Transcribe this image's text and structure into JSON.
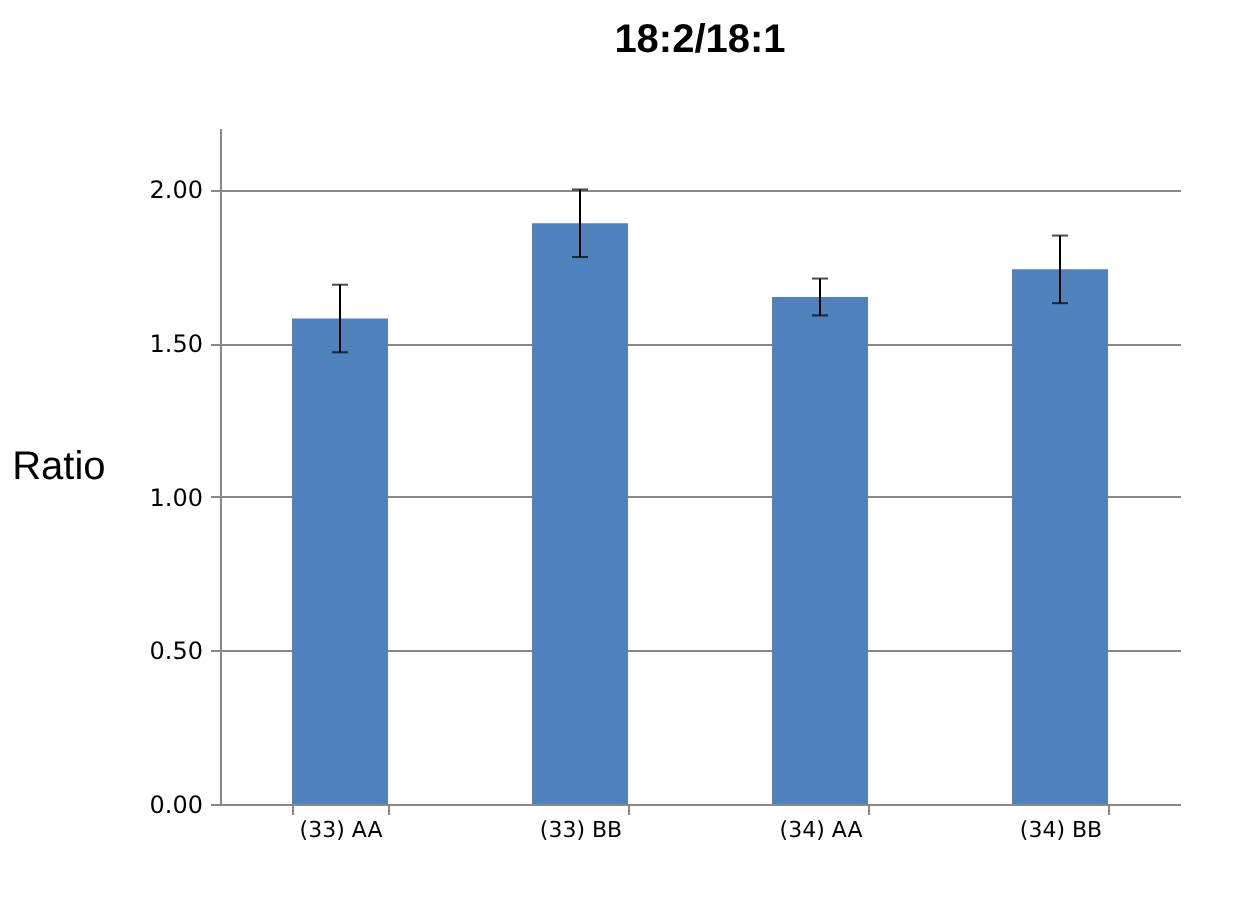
{
  "chart_data": {
    "type": "bar",
    "title": "18:2/18:1",
    "ylabel": "Ratio",
    "categories": [
      "(33) AA",
      "(33) BB",
      "(34) AA",
      "(34) BB"
    ],
    "values": [
      1.58,
      1.89,
      1.65,
      1.74
    ],
    "errors": [
      0.11,
      0.11,
      0.06,
      0.11
    ],
    "color": "#4f81bd",
    "ylim": [
      0,
      2.2
    ],
    "yticks": [
      {
        "value": 0,
        "label": "0.00"
      },
      {
        "value": 0.5,
        "label": "0.50"
      },
      {
        "value": 1,
        "label": "1.00"
      },
      {
        "value": 1.5,
        "label": "1.50"
      },
      {
        "value": 2,
        "label": "2.00"
      }
    ],
    "grid": "y"
  }
}
